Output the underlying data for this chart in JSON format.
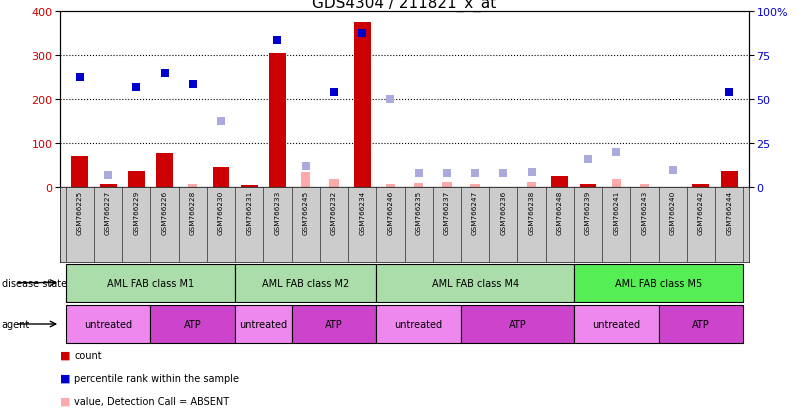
{
  "title": "GDS4304 / 211821_x_at",
  "samples": [
    "GSM766225",
    "GSM766227",
    "GSM766229",
    "GSM766226",
    "GSM766228",
    "GSM766230",
    "GSM766231",
    "GSM766233",
    "GSM766245",
    "GSM766232",
    "GSM766234",
    "GSM766246",
    "GSM766235",
    "GSM766237",
    "GSM766247",
    "GSM766236",
    "GSM766238",
    "GSM766248",
    "GSM766239",
    "GSM766241",
    "GSM766243",
    "GSM766240",
    "GSM766242",
    "GSM766244"
  ],
  "count": [
    72,
    8,
    38,
    78,
    null,
    47,
    5,
    305,
    null,
    null,
    375,
    null,
    null,
    null,
    null,
    null,
    null,
    25,
    8,
    null,
    null,
    null,
    8,
    38
  ],
  "rank_present": [
    63,
    null,
    57,
    65,
    59,
    null,
    null,
    84,
    null,
    54,
    88,
    null,
    null,
    null,
    null,
    null,
    null,
    null,
    null,
    null,
    null,
    null,
    null,
    54
  ],
  "value_absent": [
    null,
    null,
    null,
    null,
    8,
    null,
    null,
    null,
    35,
    20,
    null,
    8,
    10,
    12,
    8,
    null,
    12,
    null,
    null,
    18,
    8,
    null,
    8,
    null
  ],
  "rank_absent": [
    null,
    7,
    null,
    null,
    null,
    38,
    null,
    null,
    12,
    null,
    null,
    50,
    8,
    8,
    8,
    8,
    9,
    null,
    16,
    20,
    null,
    10,
    null,
    null
  ],
  "disease_groups": [
    {
      "label": "AML FAB class M1",
      "start": 0,
      "end": 5,
      "color": "#aaddaa"
    },
    {
      "label": "AML FAB class M2",
      "start": 6,
      "end": 10,
      "color": "#aaddaa"
    },
    {
      "label": "AML FAB class M4",
      "start": 11,
      "end": 17,
      "color": "#aaddaa"
    },
    {
      "label": "AML FAB class M5",
      "start": 18,
      "end": 23,
      "color": "#55ee55"
    }
  ],
  "agent_groups": [
    {
      "label": "untreated",
      "start": 0,
      "end": 2,
      "color": "#ee88ee"
    },
    {
      "label": "ATP",
      "start": 3,
      "end": 5,
      "color": "#cc44cc"
    },
    {
      "label": "untreated",
      "start": 6,
      "end": 7,
      "color": "#ee88ee"
    },
    {
      "label": "ATP",
      "start": 8,
      "end": 10,
      "color": "#cc44cc"
    },
    {
      "label": "untreated",
      "start": 11,
      "end": 13,
      "color": "#ee88ee"
    },
    {
      "label": "ATP",
      "start": 14,
      "end": 17,
      "color": "#cc44cc"
    },
    {
      "label": "untreated",
      "start": 18,
      "end": 20,
      "color": "#ee88ee"
    },
    {
      "label": "ATP",
      "start": 21,
      "end": 23,
      "color": "#cc44cc"
    }
  ],
  "ylim_left": [
    0,
    400
  ],
  "ylim_right": [
    0,
    100
  ],
  "yticks_left": [
    0,
    100,
    200,
    300,
    400
  ],
  "yticks_right": [
    0,
    25,
    50,
    75,
    100
  ],
  "count_color": "#cc0000",
  "rank_present_color": "#0000cc",
  "value_absent_color": "#ffaaaa",
  "rank_absent_color": "#aaaadd",
  "bg_color": "#ffffff",
  "label_bg_color": "#cccccc",
  "title_fontsize": 11,
  "tick_fontsize": 7,
  "legend_fontsize": 8
}
